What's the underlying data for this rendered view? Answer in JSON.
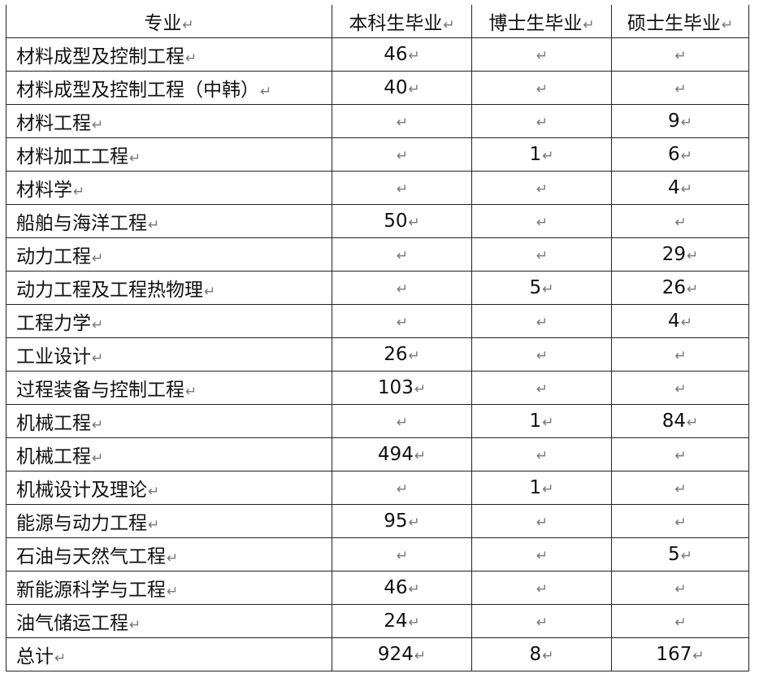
{
  "table": {
    "headers": [
      "专业",
      "本科生毕业",
      "博士生毕业",
      "硕士生毕业"
    ],
    "rows": [
      {
        "major": "材料成型及控制工程",
        "bachelor": "46",
        "doctor": "",
        "master": ""
      },
      {
        "major": "材料成型及控制工程（中韩）",
        "bachelor": "40",
        "doctor": "",
        "master": ""
      },
      {
        "major": "材料工程",
        "bachelor": "",
        "doctor": "",
        "master": "9"
      },
      {
        "major": "材料加工工程",
        "bachelor": "",
        "doctor": "1",
        "master": "6"
      },
      {
        "major": "材料学",
        "bachelor": "",
        "doctor": "",
        "master": "4"
      },
      {
        "major": "船舶与海洋工程",
        "bachelor": "50",
        "doctor": "",
        "master": ""
      },
      {
        "major": "动力工程",
        "bachelor": "",
        "doctor": "",
        "master": "29"
      },
      {
        "major": "动力工程及工程热物理",
        "bachelor": "",
        "doctor": "5",
        "master": "26"
      },
      {
        "major": "工程力学",
        "bachelor": "",
        "doctor": "",
        "master": "4"
      },
      {
        "major": "工业设计",
        "bachelor": "26",
        "doctor": "",
        "master": ""
      },
      {
        "major": "过程装备与控制工程",
        "bachelor": "103",
        "doctor": "",
        "master": ""
      },
      {
        "major": "机械工程",
        "bachelor": "",
        "doctor": "1",
        "master": "84"
      },
      {
        "major": "机械工程",
        "bachelor": "494",
        "doctor": "",
        "master": ""
      },
      {
        "major": "机械设计及理论",
        "bachelor": "",
        "doctor": "1",
        "master": ""
      },
      {
        "major": "能源与动力工程",
        "bachelor": "95",
        "doctor": "",
        "master": ""
      },
      {
        "major": "石油与天然气工程",
        "bachelor": "",
        "doctor": "",
        "master": "5"
      },
      {
        "major": "新能源科学与工程",
        "bachelor": "46",
        "doctor": "",
        "master": ""
      },
      {
        "major": "油气储运工程",
        "bachelor": "24",
        "doctor": "",
        "master": ""
      },
      {
        "major": "总计",
        "bachelor": "924",
        "doctor": "8",
        "master": "167"
      }
    ]
  },
  "return_mark": "↵"
}
